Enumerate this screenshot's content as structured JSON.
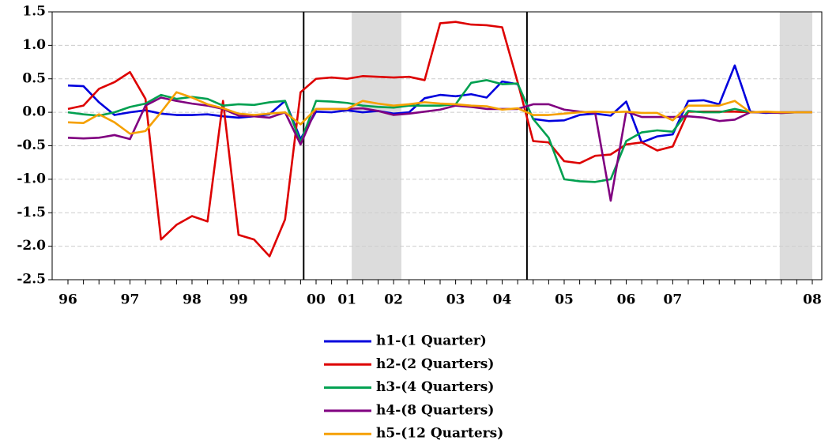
{
  "chart_data": {
    "type": "line",
    "categories": [
      "96",
      null,
      null,
      null,
      "97",
      null,
      null,
      null,
      "98",
      null,
      null,
      "99",
      null,
      null,
      null,
      null,
      "00",
      null,
      "01",
      null,
      null,
      "02",
      null,
      null,
      null,
      "03",
      null,
      null,
      "04",
      null,
      null,
      null,
      "05",
      null,
      null,
      null,
      "06",
      null,
      null,
      "07",
      null,
      null,
      null,
      null,
      null,
      null,
      null,
      null,
      "08"
    ],
    "series": [
      {
        "name": "h1-(1 Quarter)",
        "color": "#0000dd",
        "values": [
          0.4,
          0.39,
          0.15,
          -0.04,
          0.0,
          0.03,
          -0.02,
          -0.04,
          -0.04,
          -0.03,
          -0.06,
          -0.08,
          -0.06,
          -0.03,
          0.17,
          -0.4,
          0.01,
          0.0,
          0.03,
          0.0,
          0.02,
          -0.02,
          0.0,
          0.21,
          0.26,
          0.24,
          0.27,
          0.22,
          0.46,
          0.42,
          -0.1,
          -0.13,
          -0.12,
          -0.04,
          -0.02,
          -0.05,
          0.16,
          -0.45,
          -0.36,
          -0.33,
          0.17,
          0.18,
          0.12,
          0.7,
          0.01,
          -0.01,
          0.0,
          0.0,
          0.0
        ]
      },
      {
        "name": "h2-(2 Quarters)",
        "color": "#dd0000",
        "values": [
          0.05,
          0.1,
          0.35,
          0.45,
          0.6,
          0.2,
          -1.9,
          -1.68,
          -1.55,
          -1.63,
          0.17,
          -1.83,
          -1.9,
          -2.15,
          -1.6,
          0.3,
          0.5,
          0.52,
          0.5,
          0.54,
          0.53,
          0.52,
          0.53,
          0.48,
          1.33,
          1.35,
          1.31,
          1.3,
          1.27,
          0.45,
          -0.43,
          -0.45,
          -0.73,
          -0.76,
          -0.65,
          -0.63,
          -0.48,
          -0.45,
          -0.57,
          -0.51,
          0.01,
          0.01,
          0.01,
          0.01,
          0.0,
          0.0,
          0.0,
          0.0,
          0.0
        ]
      },
      {
        "name": "h3-(4 Quarters)",
        "color": "#00a050",
        "values": [
          0.0,
          -0.03,
          -0.05,
          0.0,
          0.08,
          0.13,
          0.26,
          0.2,
          0.23,
          0.2,
          0.1,
          0.12,
          0.11,
          0.15,
          0.17,
          -0.45,
          0.17,
          0.16,
          0.14,
          0.1,
          0.08,
          0.07,
          0.1,
          0.1,
          0.1,
          0.12,
          0.44,
          0.48,
          0.42,
          0.43,
          -0.1,
          -0.38,
          -1.0,
          -1.03,
          -1.04,
          -1.0,
          -0.43,
          -0.3,
          -0.27,
          -0.29,
          0.02,
          0.0,
          0.0,
          0.05,
          0.0,
          0.0,
          -0.01,
          0.0,
          0.0
        ]
      },
      {
        "name": "h4-(8 Quarters)",
        "color": "#800080",
        "values": [
          -0.38,
          -0.39,
          -0.38,
          -0.34,
          -0.4,
          0.1,
          0.22,
          0.17,
          0.13,
          0.1,
          0.05,
          -0.05,
          -0.06,
          -0.08,
          0.0,
          -0.48,
          0.05,
          0.05,
          0.05,
          0.06,
          0.02,
          -0.04,
          -0.02,
          0.01,
          0.04,
          0.1,
          0.08,
          0.05,
          0.05,
          0.05,
          0.12,
          0.12,
          0.04,
          0.01,
          -0.01,
          -1.32,
          0.01,
          -0.07,
          -0.07,
          -0.07,
          -0.06,
          -0.08,
          -0.13,
          -0.11,
          0.0,
          0.0,
          -0.01,
          0.0,
          0.0
        ]
      },
      {
        "name": "h5-(12 Quarters)",
        "color": "#f5a000",
        "values": [
          -0.15,
          -0.16,
          -0.03,
          -0.15,
          -0.32,
          -0.28,
          0.0,
          0.3,
          0.22,
          0.12,
          0.06,
          -0.02,
          -0.04,
          -0.02,
          0.0,
          -0.18,
          0.05,
          0.05,
          0.05,
          0.17,
          0.13,
          0.1,
          0.12,
          0.15,
          0.13,
          0.12,
          0.1,
          0.09,
          0.04,
          0.06,
          -0.04,
          -0.04,
          -0.02,
          0.0,
          0.01,
          0.0,
          0.01,
          -0.01,
          -0.01,
          -0.12,
          0.1,
          0.1,
          0.1,
          0.17,
          0.0,
          0.01,
          0.0,
          0.0,
          0.0
        ]
      }
    ],
    "ylim": [
      -2.5,
      1.5
    ],
    "yticks": [
      -2.5,
      {
        "value": -2,
        "label": "-2.0"
      },
      -1.5,
      {
        "value": -1,
        "label": "-1.0"
      },
      -0.5,
      {
        "value": 0,
        "label": "0.0"
      },
      0.5,
      {
        "value": 1,
        "label": "1.0"
      },
      1.5
    ],
    "grid": true,
    "shaded_periods": [
      [
        18.3,
        21.5
      ],
      [
        45.9,
        48
      ]
    ],
    "vertical_lines": [
      15.2,
      29.6
    ],
    "legend": "bottom"
  }
}
